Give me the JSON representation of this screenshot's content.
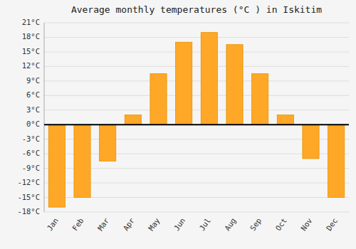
{
  "chart_data": {
    "type": "bar",
    "title": "Average monthly temperatures (°C ) in Iskitim",
    "categories": [
      "Jan",
      "Feb",
      "Mar",
      "Apr",
      "May",
      "Jun",
      "Jul",
      "Aug",
      "Sep",
      "Oct",
      "Nov",
      "Dec"
    ],
    "values": [
      -17,
      -15,
      -7.5,
      2,
      10.5,
      17,
      19,
      16.5,
      10.5,
      2,
      -7,
      -15
    ],
    "color": "#FFA726",
    "ylim": [
      -18,
      21
    ],
    "yticks": [
      {
        "value": -18,
        "label": "-18°C"
      },
      {
        "value": -15,
        "label": "-15°C"
      },
      {
        "value": -12,
        "label": "-12°C"
      },
      {
        "value": -9,
        "label": "-9°C"
      },
      {
        "value": -6,
        "label": "-6°C"
      },
      {
        "value": -3,
        "label": "-3°C"
      },
      {
        "value": 0,
        "label": "0°C"
      },
      {
        "value": 3,
        "label": "3°C"
      },
      {
        "value": 6,
        "label": "6°C"
      },
      {
        "value": 9,
        "label": "9°C"
      },
      {
        "value": 12,
        "label": "12°C"
      },
      {
        "value": 15,
        "label": "15°C"
      },
      {
        "value": 18,
        "label": "18°C"
      },
      {
        "value": 21,
        "label": "21°C"
      }
    ],
    "grid": true
  }
}
